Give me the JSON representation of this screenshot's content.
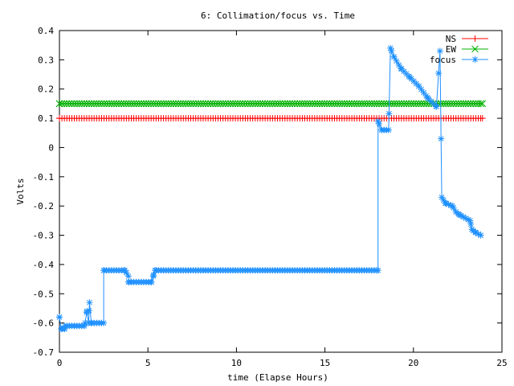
{
  "chart_data": {
    "type": "line",
    "title": "6: Collimation/focus vs. Time",
    "xlabel": "time (Elapse Hours)",
    "ylabel": "Volts",
    "xlim": [
      0,
      25
    ],
    "ylim": [
      -0.7,
      0.4
    ],
    "x_ticks": [
      0,
      5,
      10,
      15,
      20,
      25
    ],
    "y_ticks": [
      -0.7,
      -0.6,
      -0.5,
      -0.4,
      -0.3,
      -0.2,
      -0.1,
      0,
      0.1,
      0.2,
      0.3,
      0.4
    ],
    "grid": false,
    "legend_position": "top-right",
    "x_range": [
      0,
      23.9
    ],
    "series": [
      {
        "name": "NS",
        "color": "#ff0000",
        "marker": "plus",
        "points": [
          [
            0,
            0.1
          ],
          [
            23.9,
            0.1
          ]
        ]
      },
      {
        "name": "EW",
        "color": "#00b000",
        "marker": "cross",
        "points": [
          [
            0,
            0.15
          ],
          [
            23.9,
            0.15
          ]
        ]
      },
      {
        "name": "focus",
        "color": "#1e90ff",
        "marker": "star",
        "points": [
          [
            0,
            -0.58
          ],
          [
            0.1,
            -0.62
          ],
          [
            0.3,
            -0.62
          ],
          [
            0.3,
            -0.61
          ],
          [
            1.4,
            -0.61
          ],
          [
            1.45,
            -0.6
          ],
          [
            1.55,
            -0.56
          ],
          [
            1.65,
            -0.6
          ],
          [
            1.7,
            -0.53
          ],
          [
            1.8,
            -0.6
          ],
          [
            2.5,
            -0.6
          ],
          [
            2.5,
            -0.42
          ],
          [
            3.7,
            -0.42
          ],
          [
            3.9,
            -0.44
          ],
          [
            3.9,
            -0.46
          ],
          [
            5.2,
            -0.46
          ],
          [
            5.3,
            -0.44
          ],
          [
            5.4,
            -0.42
          ],
          [
            18.0,
            -0.42
          ],
          [
            18.0,
            0.09
          ],
          [
            18.2,
            0.06
          ],
          [
            18.6,
            0.06
          ],
          [
            18.7,
            0.34
          ],
          [
            18.9,
            0.31
          ],
          [
            19.3,
            0.27
          ],
          [
            19.8,
            0.24
          ],
          [
            20.3,
            0.21
          ],
          [
            20.8,
            0.17
          ],
          [
            21.3,
            0.14
          ],
          [
            21.5,
            0.33
          ],
          [
            21.6,
            -0.17
          ],
          [
            21.8,
            -0.19
          ],
          [
            22.2,
            -0.2
          ],
          [
            22.4,
            -0.22
          ],
          [
            22.6,
            -0.23
          ],
          [
            23.2,
            -0.25
          ],
          [
            23.3,
            -0.28
          ],
          [
            23.5,
            -0.29
          ],
          [
            23.8,
            -0.3
          ]
        ]
      }
    ]
  }
}
